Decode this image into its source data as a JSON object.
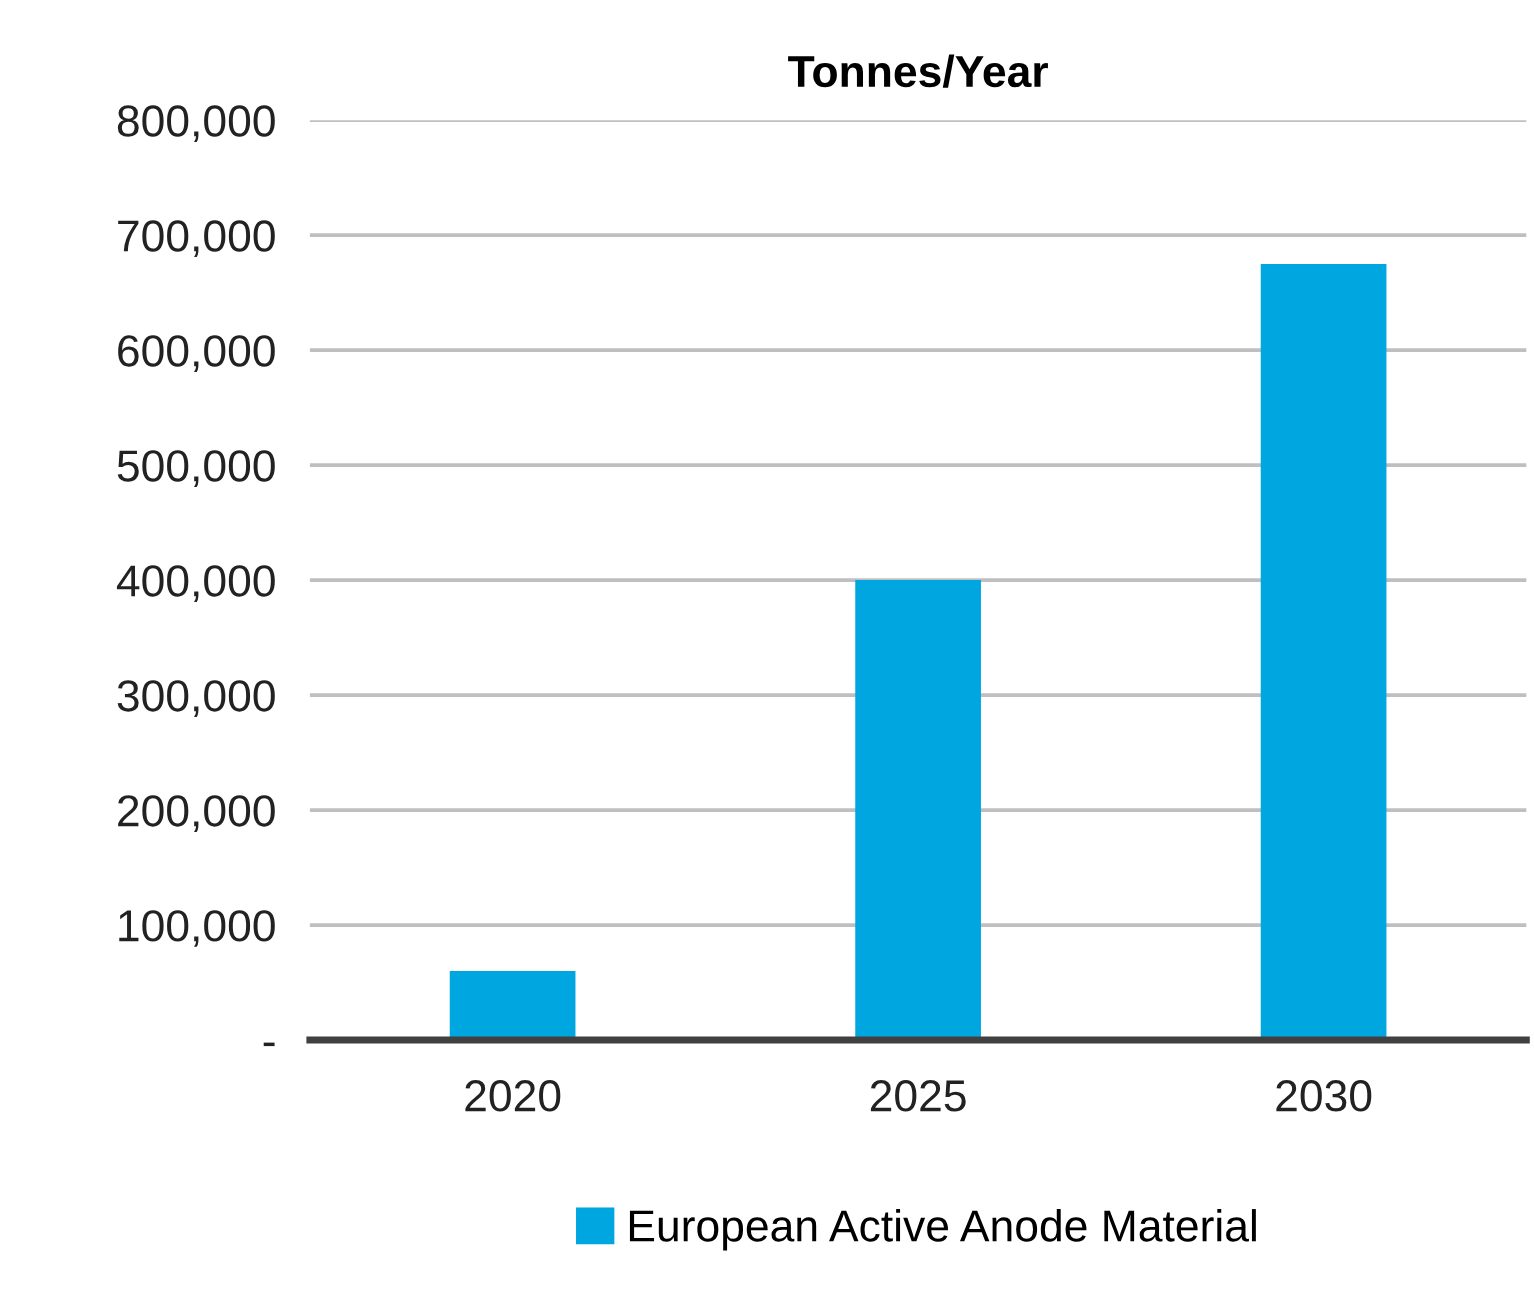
{
  "chart_data": {
    "type": "bar",
    "title": "Tonnes/Year",
    "categories": [
      "2020",
      "2025",
      "2030"
    ],
    "series": [
      {
        "name": "European Active Anode Material",
        "color": "#00a6e0",
        "values": [
          60000,
          400000,
          675000
        ]
      }
    ],
    "ylim": [
      0,
      800000
    ],
    "yticks": [
      {
        "value": 0,
        "label": "-"
      },
      {
        "value": 100000,
        "label": "100,000"
      },
      {
        "value": 200000,
        "label": "200,000"
      },
      {
        "value": 300000,
        "label": "300,000"
      },
      {
        "value": 400000,
        "label": "400,000"
      },
      {
        "value": 500000,
        "label": "500,000"
      },
      {
        "value": 600000,
        "label": "600,000"
      },
      {
        "value": 700000,
        "label": "700,000"
      },
      {
        "value": 800000,
        "label": "800,000"
      }
    ],
    "grid": "y",
    "legend": "bottom"
  }
}
